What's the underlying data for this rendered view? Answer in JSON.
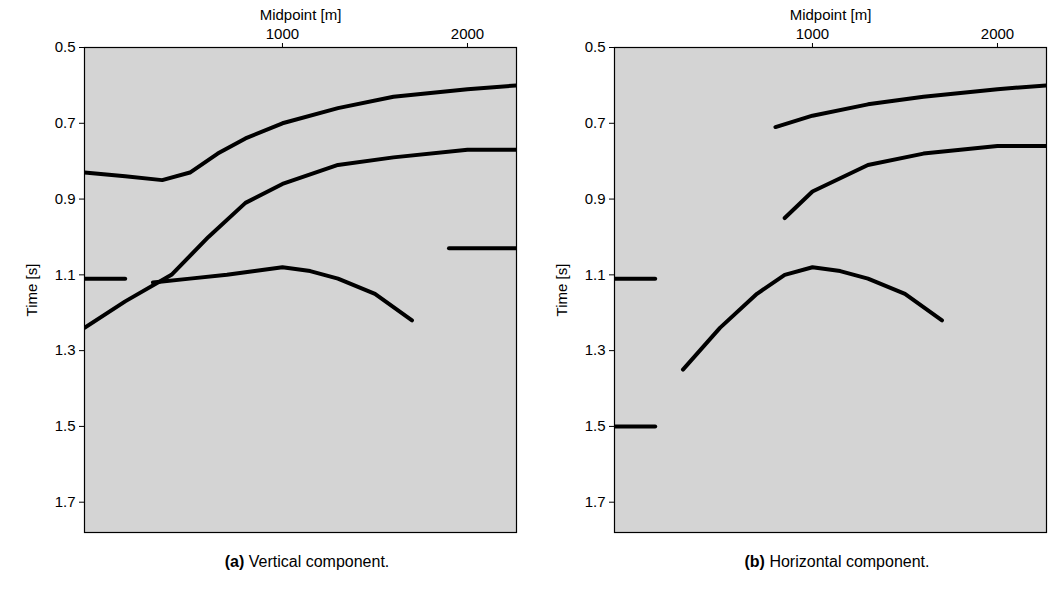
{
  "chart_data": [
    {
      "type": "line",
      "title": "(a) Vertical component.",
      "xlabel": "Midpoint [m]",
      "ylabel": "Time [s]",
      "xlim": [
        -70,
        2265
      ],
      "ylim": [
        0.5,
        1.78
      ],
      "xticks": [
        1000,
        2000
      ],
      "yticks": [
        0.5,
        0.7,
        0.9,
        1.1,
        1.3,
        1.5,
        1.7
      ],
      "tick_labels": true,
      "series": [
        {
          "color": "#000000",
          "x": [
            -70,
            150,
            350,
            500,
            650,
            800,
            1000,
            1300,
            1600,
            2000,
            2265
          ],
          "values": [
            0.83,
            0.84,
            0.85,
            0.83,
            0.78,
            0.74,
            0.7,
            0.66,
            0.63,
            0.61,
            0.6
          ]
        },
        {
          "color": "#000000",
          "x": [
            -70,
            150,
            400,
            600,
            800,
            1000,
            1300,
            1600,
            2000,
            2265
          ],
          "values": [
            1.24,
            1.17,
            1.1,
            1.0,
            0.91,
            0.86,
            0.81,
            0.79,
            0.77,
            0.77
          ]
        },
        {
          "color": "#000000",
          "x": [
            300,
            500,
            700,
            850,
            1000,
            1150,
            1300,
            1500,
            1700
          ],
          "values": [
            1.12,
            1.11,
            1.1,
            1.09,
            1.08,
            1.09,
            1.11,
            1.15,
            1.22
          ]
        },
        {
          "color": "#000000",
          "x": [
            -70,
            150
          ],
          "values": [
            1.11,
            1.11
          ]
        },
        {
          "color": "#000000",
          "x": [
            1900,
            2265
          ],
          "values": [
            1.03,
            1.03
          ]
        }
      ]
    },
    {
      "type": "line",
      "title": "(b) Horizontal component.",
      "xlabel": "Midpoint [m]",
      "ylabel": "Time [s]",
      "xlim": [
        -70,
        2265
      ],
      "ylim": [
        0.5,
        1.78
      ],
      "xticks": [
        1000,
        2000
      ],
      "yticks": [
        0.5,
        0.7,
        0.9,
        1.1,
        1.3,
        1.5,
        1.7
      ],
      "tick_labels": true,
      "series": [
        {
          "color": "#000000",
          "x": [
            800,
            1000,
            1300,
            1600,
            2000,
            2265
          ],
          "values": [
            0.71,
            0.68,
            0.65,
            0.63,
            0.61,
            0.6
          ]
        },
        {
          "color": "#000000",
          "x": [
            850,
            1000,
            1300,
            1600,
            2000,
            2265
          ],
          "values": [
            0.95,
            0.88,
            0.81,
            0.78,
            0.76,
            0.76
          ]
        },
        {
          "color": "#000000",
          "x": [
            300,
            500,
            700,
            850,
            1000,
            1150,
            1300,
            1500,
            1700
          ],
          "values": [
            1.35,
            1.24,
            1.15,
            1.1,
            1.08,
            1.09,
            1.11,
            1.15,
            1.22
          ]
        },
        {
          "color": "#000000",
          "x": [
            -70,
            150
          ],
          "values": [
            1.11,
            1.11
          ]
        },
        {
          "color": "#000000",
          "x": [
            -70,
            150
          ],
          "values": [
            1.5,
            1.5
          ]
        }
      ]
    }
  ]
}
